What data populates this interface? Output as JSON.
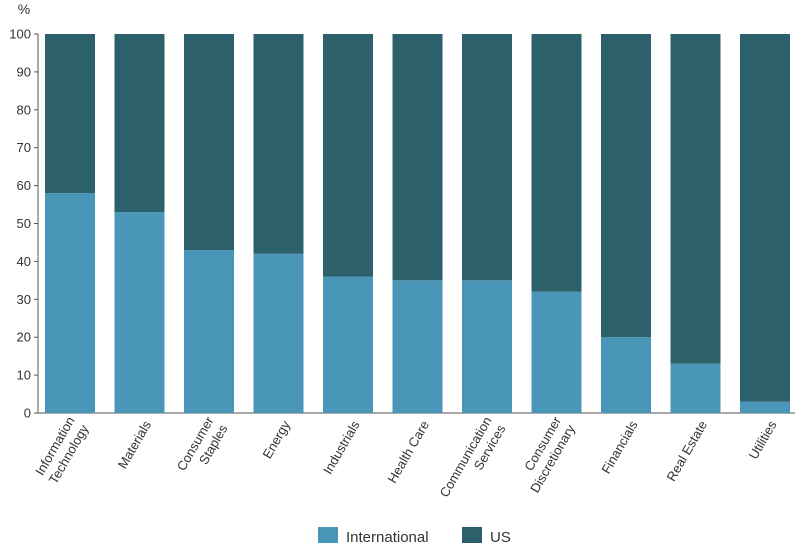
{
  "chart_data": {
    "type": "bar",
    "stacked": true,
    "title": "",
    "xlabel": "",
    "ylabel": "%",
    "ylim": [
      0,
      100
    ],
    "yticks": [
      0,
      10,
      20,
      30,
      40,
      50,
      60,
      70,
      80,
      90,
      100
    ],
    "grid": false,
    "legend_position": "bottom",
    "categories": [
      "Information Technology",
      "Materials",
      "Consumer Staples",
      "Energy",
      "Industrials",
      "Health Care",
      "Communication Services",
      "Consumer Discretionary",
      "Financials",
      "Real Estate",
      "Utilities"
    ],
    "series": [
      {
        "name": "International",
        "color": "#4a96b8",
        "values": [
          58,
          53,
          43,
          42,
          36,
          35,
          35,
          32,
          20,
          13,
          3
        ]
      },
      {
        "name": "US",
        "color": "#2c616c",
        "values": [
          42,
          47,
          57,
          58,
          64,
          65,
          65,
          68,
          80,
          87,
          97
        ]
      }
    ]
  }
}
